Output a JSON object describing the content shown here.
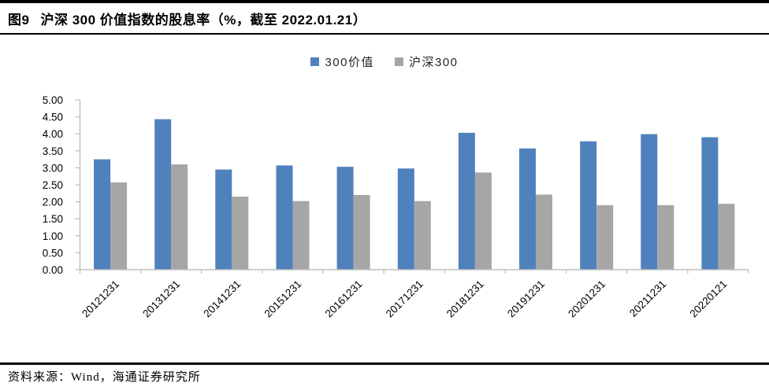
{
  "header": {
    "figure_label": "图9",
    "title": "沪深 300 价值指数的股息率（%，截至 2022.01.21）"
  },
  "chart_data": {
    "type": "bar",
    "title": "沪深 300 价值指数的股息率（%，截至 2022.01.21）",
    "categories": [
      "20121231",
      "20131231",
      "20141231",
      "20151231",
      "20161231",
      "20171231",
      "20181231",
      "20191231",
      "20201231",
      "20211231",
      "20220121"
    ],
    "series": [
      {
        "name": "300价值",
        "color": "#4F81BD",
        "values": [
          3.25,
          4.43,
          2.95,
          3.07,
          3.03,
          2.98,
          4.03,
          3.57,
          3.78,
          3.99,
          3.9
        ]
      },
      {
        "name": "沪深300",
        "color": "#A6A6A6",
        "values": [
          2.57,
          3.1,
          2.15,
          2.02,
          2.2,
          2.02,
          2.86,
          2.21,
          1.9,
          1.9,
          1.94
        ]
      }
    ],
    "xlabel": "",
    "ylabel": "",
    "ylim": [
      0,
      5
    ],
    "ytick_step": 0.5,
    "ytick_labels": [
      "0.00",
      "0.50",
      "1.00",
      "1.50",
      "2.00",
      "2.50",
      "3.00",
      "3.50",
      "4.00",
      "4.50",
      "5.00"
    ],
    "grid": false,
    "legend_position": "top-center",
    "axis_color": "#BFBFBF",
    "tick_label_color": "#000000"
  },
  "footer": {
    "source": "资料来源：Wind，海通证券研究所"
  }
}
